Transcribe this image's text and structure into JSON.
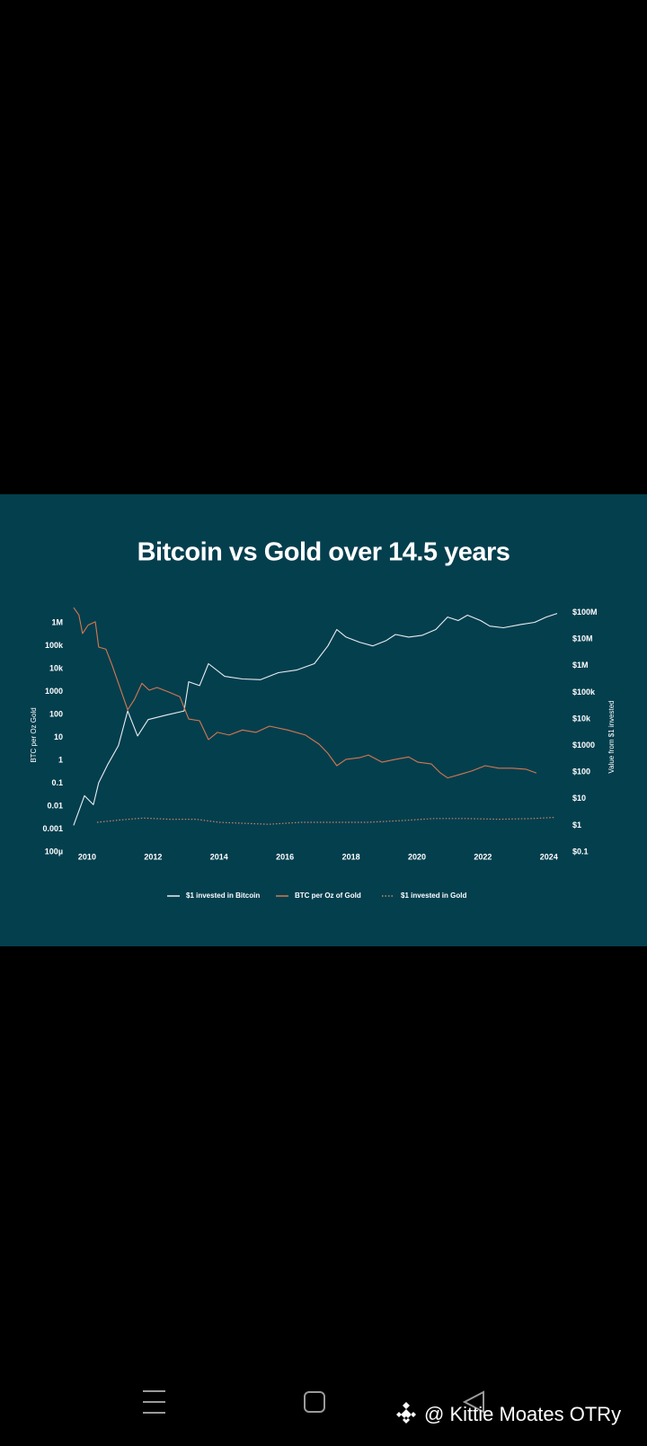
{
  "chart_data": {
    "type": "line",
    "title": "Bitcoin vs Gold over 14.5 years",
    "ylabel": "BTC per Oz Gold",
    "y2label": "Value from $1 invested",
    "log_scale": true,
    "grid": false,
    "legend": "bottom",
    "xlim": [
      2009.5,
      2024.4
    ],
    "xticks": [
      2010,
      2012,
      2014,
      2016,
      2018,
      2020,
      2022,
      2024
    ],
    "ylim": [
      0.0001,
      10000000
    ],
    "yticks": [
      {
        "value": 1000000,
        "label": "1M"
      },
      {
        "value": 100000,
        "label": "100k"
      },
      {
        "value": 10000,
        "label": "10k"
      },
      1000,
      100,
      10,
      1,
      0.1,
      0.01,
      0.001,
      {
        "value": 0.0001,
        "label": "100µ"
      }
    ],
    "y2lim": [
      0.1,
      300000000
    ],
    "y2ticks": [
      {
        "value": 100000000,
        "label": "$100M"
      },
      {
        "value": 10000000,
        "label": "$10M"
      },
      {
        "value": 1000000,
        "label": "$1M"
      },
      {
        "value": 100000,
        "label": "$100k"
      },
      {
        "value": 10000,
        "label": "$10k"
      },
      {
        "value": 1000,
        "label": "$1000"
      },
      {
        "value": 100,
        "label": "$100"
      },
      {
        "value": 10,
        "label": "$10"
      },
      {
        "value": 1,
        "label": "$1"
      },
      {
        "value": 0.1,
        "label": "$0.1"
      }
    ],
    "series": [
      {
        "name": "$1 invested in Bitcoin",
        "color": "#e9eff1",
        "axis": "y2",
        "style": "solid",
        "x": [
          2009.59,
          2009.92,
          2010.19,
          2010.35,
          2010.63,
          2010.95,
          2011.23,
          2011.53,
          2011.85,
          2012.4,
          2012.94,
          2013.08,
          2013.41,
          2013.68,
          2014.17,
          2014.71,
          2015.26,
          2015.8,
          2016.35,
          2016.89,
          2017.3,
          2017.57,
          2017.85,
          2018.26,
          2018.66,
          2019.07,
          2019.35,
          2019.75,
          2020.16,
          2020.57,
          2020.93,
          2021.25,
          2021.53,
          2021.93,
          2022.21,
          2022.62,
          2023.16,
          2023.57,
          2023.92,
          2024.25
        ],
        "values": [
          1,
          13,
          6,
          40,
          200,
          1000,
          20000,
          2300,
          9500,
          14000,
          20000,
          250000,
          180000,
          1200000,
          400000,
          320000,
          300000,
          550000,
          690000,
          1200000,
          5600000,
          23000000,
          12000000,
          7700000,
          5600000,
          8900000,
          15000000,
          12000000,
          14000000,
          23000000,
          68000000,
          50000000,
          80000000,
          50000000,
          31000000,
          27000000,
          36000000,
          43000000,
          68000000,
          93000000
        ]
      },
      {
        "name": "BTC per Oz of Gold",
        "color": "#d5784f",
        "axis": "y",
        "style": "solid",
        "x": [
          2009.59,
          2009.75,
          2009.86,
          2010.03,
          2010.25,
          2010.35,
          2010.57,
          2010.76,
          2010.95,
          2011.23,
          2011.44,
          2011.66,
          2011.88,
          2012.12,
          2012.48,
          2012.81,
          2013.08,
          2013.41,
          2013.68,
          2013.95,
          2014.31,
          2014.71,
          2015.12,
          2015.53,
          2016.08,
          2016.62,
          2017.03,
          2017.3,
          2017.57,
          2017.85,
          2018.26,
          2018.53,
          2018.94,
          2019.35,
          2019.75,
          2020.03,
          2020.44,
          2020.71,
          2020.93,
          2021.25,
          2021.66,
          2022.07,
          2022.48,
          2022.89,
          2023.3,
          2023.62
        ],
        "values": [
          4600000,
          2200000,
          340000,
          800000,
          1100000,
          87000,
          70000,
          14000,
          2300,
          160,
          470,
          2300,
          1150,
          1500,
          950,
          600,
          63,
          53,
          8,
          16.6,
          12.6,
          21,
          16.6,
          31,
          21,
          12.6,
          5.1,
          2,
          0.58,
          1.1,
          1.3,
          1.7,
          0.83,
          1.1,
          1.4,
          0.83,
          0.69,
          0.28,
          0.17,
          0.23,
          0.34,
          0.58,
          0.45,
          0.45,
          0.41,
          0.28
        ]
      },
      {
        "name": "$1 invested in Gold",
        "color": "#c98468",
        "axis": "y2",
        "style": "dotted",
        "x": [
          2010.3,
          2011,
          2011.7,
          2012.5,
          2013.3,
          2014,
          2015.5,
          2016.5,
          2017.5,
          2018.5,
          2019.5,
          2020.5,
          2021.5,
          2022.5,
          2023.5,
          2024.2
        ],
        "values": [
          1.3,
          1.6,
          1.9,
          1.7,
          1.7,
          1.3,
          1.1,
          1.3,
          1.3,
          1.3,
          1.5,
          1.8,
          1.8,
          1.7,
          1.8,
          2
        ]
      }
    ]
  },
  "watermark": "@ Kittie Moates OTRy"
}
